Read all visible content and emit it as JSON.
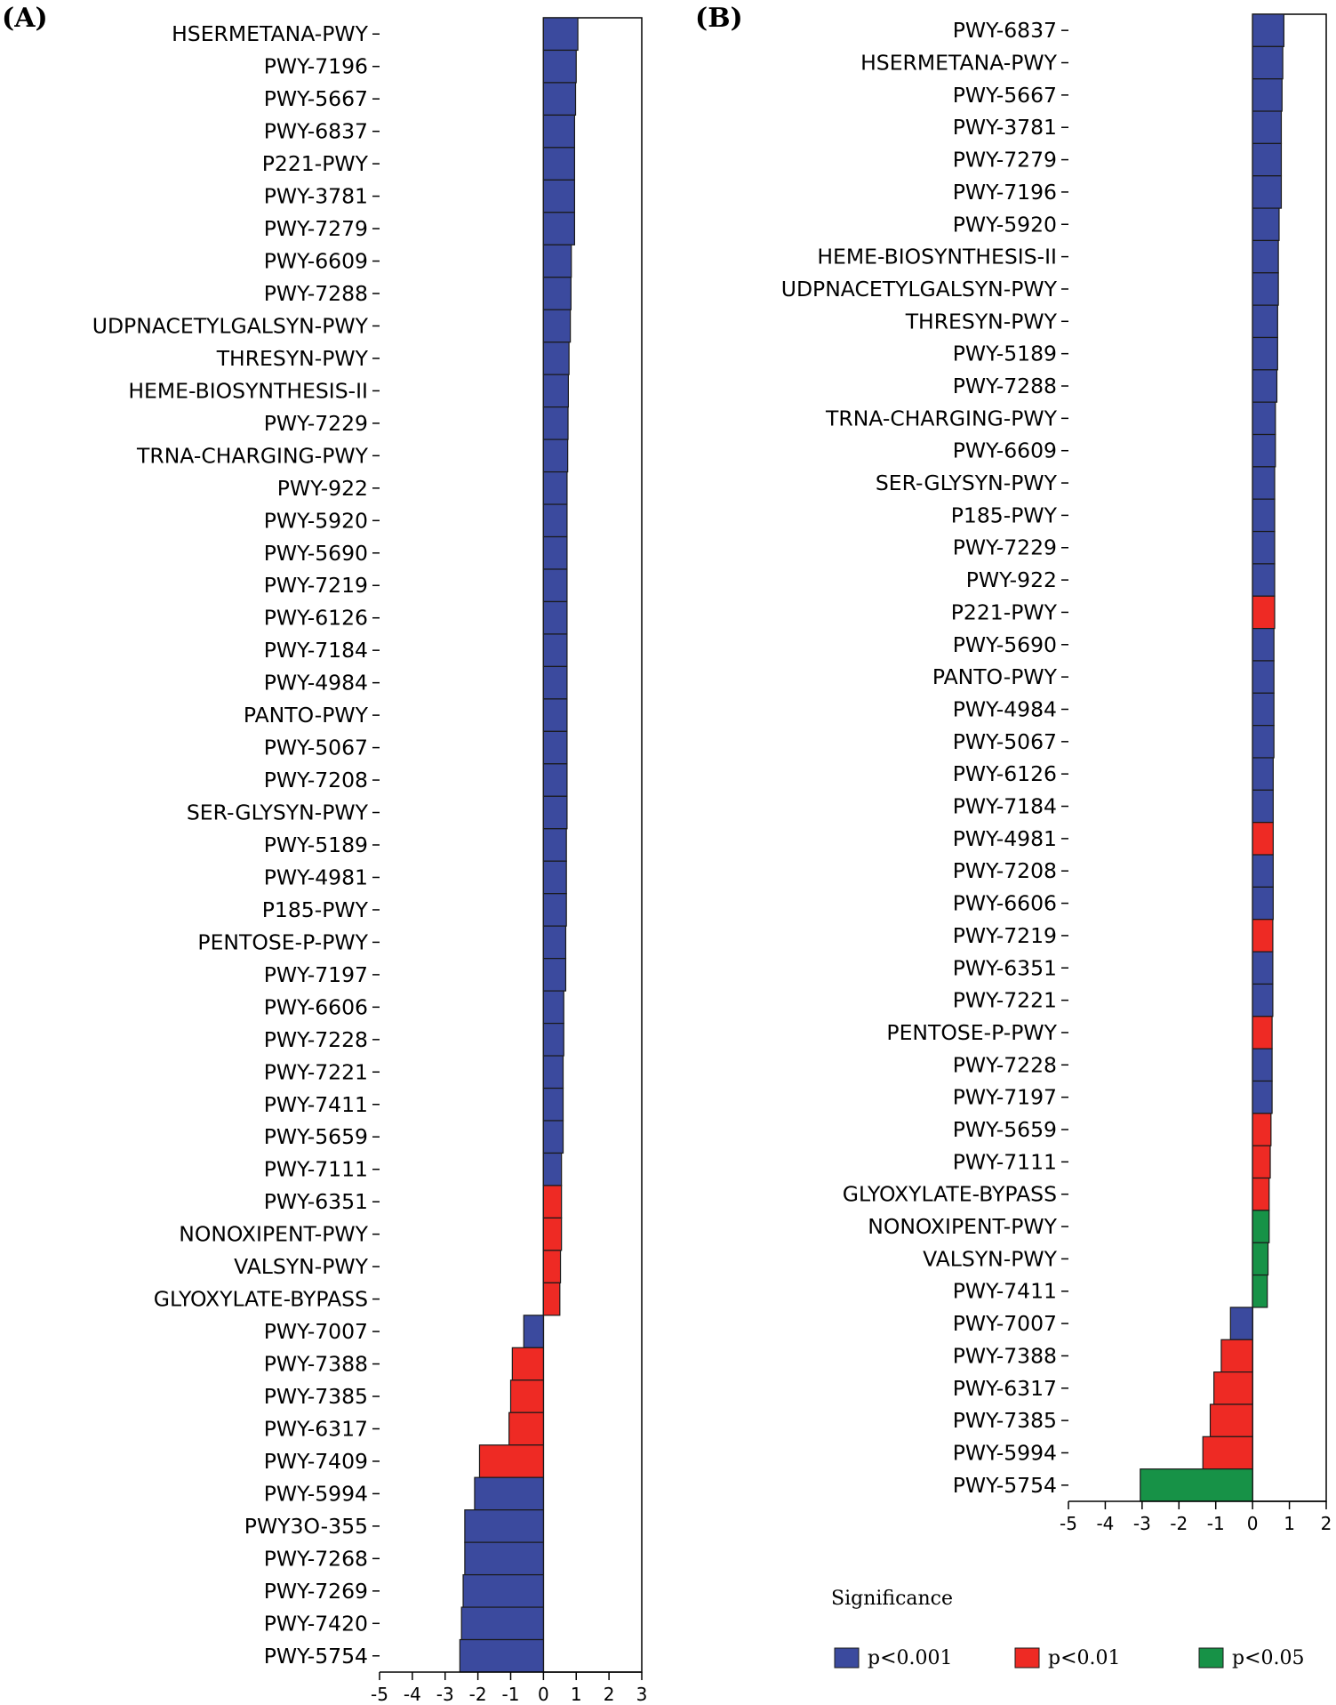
{
  "colors": {
    "p<0.001": "#3b4a9e",
    "p<0.01": "#ee2a24",
    "p<0.05": "#179247",
    "bar_border": "#1a1a1a",
    "axis": "#000000"
  },
  "chart_data": [
    {
      "panel": "(A)",
      "type": "bar",
      "orientation": "horizontal",
      "xlim": [
        -5,
        3
      ],
      "xticks": [
        -5,
        -4,
        -3,
        -2,
        -1,
        0,
        1,
        2,
        3
      ],
      "categories": [
        "HSERMETANA-PWY",
        "PWY-7196",
        "PWY-5667",
        "PWY-6837",
        "P221-PWY",
        "PWY-3781",
        "PWY-7279",
        "PWY-6609",
        "PWY-7288",
        "UDPNACETYLGALSYN-PWY",
        "THRESYN-PWY",
        "HEME-BIOSYNTHESIS-II",
        "PWY-7229",
        "TRNA-CHARGING-PWY",
        "PWY-922",
        "PWY-5920",
        "PWY-5690",
        "PWY-7219",
        "PWY-6126",
        "PWY-7184",
        "PWY-4984",
        "PANTO-PWY",
        "PWY-5067",
        "PWY-7208",
        "SER-GLYSYN-PWY",
        "PWY-5189",
        "PWY-4981",
        "P185-PWY",
        "PENTOSE-P-PWY",
        "PWY-7197",
        "PWY-6606",
        "PWY-7228",
        "PWY-7221",
        "PWY-7411",
        "PWY-5659",
        "PWY-7111",
        "PWY-6351",
        "NONOXIPENT-PWY",
        "VALSYN-PWY",
        "GLYOXYLATE-BYPASS",
        "PWY-7007",
        "PWY-7388",
        "PWY-7385",
        "PWY-6317",
        "PWY-7409",
        "PWY-5994",
        "PWY3O-355",
        "PWY-7268",
        "PWY-7269",
        "PWY-7420",
        "PWY-5754"
      ],
      "values": [
        1.05,
        1.0,
        0.98,
        0.95,
        0.95,
        0.95,
        0.95,
        0.85,
        0.84,
        0.82,
        0.78,
        0.76,
        0.75,
        0.74,
        0.72,
        0.72,
        0.72,
        0.72,
        0.72,
        0.72,
        0.72,
        0.72,
        0.72,
        0.72,
        0.72,
        0.7,
        0.7,
        0.7,
        0.68,
        0.68,
        0.62,
        0.62,
        0.6,
        0.6,
        0.6,
        0.55,
        0.55,
        0.55,
        0.52,
        0.5,
        -0.6,
        -0.95,
        -1.0,
        -1.05,
        -1.95,
        -2.1,
        -2.4,
        -2.4,
        -2.45,
        -2.5,
        -2.55
      ],
      "significance": [
        "p<0.001",
        "p<0.001",
        "p<0.001",
        "p<0.001",
        "p<0.001",
        "p<0.001",
        "p<0.001",
        "p<0.001",
        "p<0.001",
        "p<0.001",
        "p<0.001",
        "p<0.001",
        "p<0.001",
        "p<0.001",
        "p<0.001",
        "p<0.001",
        "p<0.001",
        "p<0.001",
        "p<0.001",
        "p<0.001",
        "p<0.001",
        "p<0.001",
        "p<0.001",
        "p<0.001",
        "p<0.001",
        "p<0.001",
        "p<0.001",
        "p<0.001",
        "p<0.001",
        "p<0.001",
        "p<0.001",
        "p<0.001",
        "p<0.001",
        "p<0.001",
        "p<0.001",
        "p<0.001",
        "p<0.01",
        "p<0.01",
        "p<0.01",
        "p<0.01",
        "p<0.001",
        "p<0.01",
        "p<0.01",
        "p<0.01",
        "p<0.01",
        "p<0.001",
        "p<0.001",
        "p<0.001",
        "p<0.001",
        "p<0.001",
        "p<0.001"
      ]
    },
    {
      "panel": "(B)",
      "type": "bar",
      "orientation": "horizontal",
      "xlim": [
        -5,
        2
      ],
      "xticks": [
        -5,
        -4,
        -3,
        -2,
        -1,
        0,
        1,
        2
      ],
      "categories": [
        "PWY-6837",
        "HSERMETANA-PWY",
        "PWY-5667",
        "PWY-3781",
        "PWY-7279",
        "PWY-7196",
        "PWY-5920",
        "HEME-BIOSYNTHESIS-II",
        "UDPNACETYLGALSYN-PWY",
        "THRESYN-PWY",
        "PWY-5189",
        "PWY-7288",
        "TRNA-CHARGING-PWY",
        "PWY-6609",
        "SER-GLYSYN-PWY",
        "P185-PWY",
        "PWY-7229",
        "PWY-922",
        "P221-PWY",
        "PWY-5690",
        "PANTO-PWY",
        "PWY-4984",
        "PWY-5067",
        "PWY-6126",
        "PWY-7184",
        "PWY-4981",
        "PWY-7208",
        "PWY-6606",
        "PWY-7219",
        "PWY-6351",
        "PWY-7221",
        "PENTOSE-P-PWY",
        "PWY-7228",
        "PWY-7197",
        "PWY-5659",
        "PWY-7111",
        "GLYOXYLATE-BYPASS",
        "NONOXIPENT-PWY",
        "VALSYN-PWY",
        "PWY-7411",
        "PWY-7007",
        "PWY-7388",
        "PWY-6317",
        "PWY-7385",
        "PWY-5994",
        "PWY-5754"
      ],
      "values": [
        0.85,
        0.82,
        0.8,
        0.78,
        0.78,
        0.78,
        0.72,
        0.7,
        0.7,
        0.68,
        0.68,
        0.66,
        0.62,
        0.62,
        0.6,
        0.6,
        0.6,
        0.6,
        0.6,
        0.58,
        0.58,
        0.58,
        0.58,
        0.56,
        0.56,
        0.56,
        0.56,
        0.56,
        0.55,
        0.55,
        0.55,
        0.53,
        0.53,
        0.53,
        0.5,
        0.48,
        0.45,
        0.45,
        0.42,
        0.4,
        -0.6,
        -0.85,
        -1.05,
        -1.15,
        -1.35,
        -3.05
      ],
      "significance": [
        "p<0.001",
        "p<0.001",
        "p<0.001",
        "p<0.001",
        "p<0.001",
        "p<0.001",
        "p<0.001",
        "p<0.001",
        "p<0.001",
        "p<0.001",
        "p<0.001",
        "p<0.001",
        "p<0.001",
        "p<0.001",
        "p<0.001",
        "p<0.001",
        "p<0.001",
        "p<0.001",
        "p<0.01",
        "p<0.001",
        "p<0.001",
        "p<0.001",
        "p<0.001",
        "p<0.001",
        "p<0.001",
        "p<0.01",
        "p<0.001",
        "p<0.001",
        "p<0.01",
        "p<0.001",
        "p<0.001",
        "p<0.01",
        "p<0.001",
        "p<0.001",
        "p<0.01",
        "p<0.01",
        "p<0.01",
        "p<0.05",
        "p<0.05",
        "p<0.05",
        "p<0.001",
        "p<0.01",
        "p<0.01",
        "p<0.01",
        "p<0.01",
        "p<0.05"
      ]
    }
  ],
  "legend": {
    "title": "Significance",
    "items": [
      {
        "label": "p<0.001",
        "color": "#3b4a9e"
      },
      {
        "label": "p<0.01",
        "color": "#ee2a24"
      },
      {
        "label": "p<0.05",
        "color": "#179247"
      }
    ]
  }
}
